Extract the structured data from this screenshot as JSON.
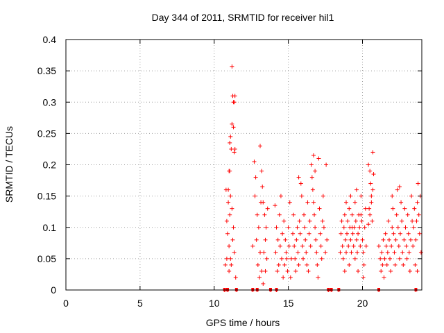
{
  "chart_data": {
    "type": "scatter",
    "title": "Day 344 of 2011, SRMTID for receiver hil1",
    "xlabel": "GPS time / hours",
    "ylabel": "SRMTID / TECUs",
    "xlim": [
      0,
      24
    ],
    "ylim": [
      0,
      0.4
    ],
    "x_ticks": [
      "0",
      "5",
      "10",
      "15",
      "20"
    ],
    "y_ticks": [
      "0",
      "0.05",
      "0.1",
      "0.15",
      "0.2",
      "0.25",
      "0.3",
      "0.35",
      "0.4"
    ],
    "x_tick_values": [
      0,
      5,
      10,
      15,
      20
    ],
    "y_tick_values": [
      0,
      0.05,
      0.1,
      0.15,
      0.2,
      0.25,
      0.3,
      0.35,
      0.4
    ],
    "marker": "+",
    "color": "#ff0000",
    "series": [
      {
        "name": "hil1",
        "points": [
          [
            10.75,
            0.04
          ],
          [
            10.8,
            0.16
          ],
          [
            10.85,
            0.11
          ],
          [
            10.9,
            0.09
          ],
          [
            10.95,
            0.14
          ],
          [
            11.0,
            0.07
          ],
          [
            11.05,
            0.12
          ],
          [
            11.1,
            0.05
          ],
          [
            10.7,
            0.0
          ],
          [
            10.9,
            0.0
          ],
          [
            11.5,
            0.0
          ],
          [
            12.6,
            0.0
          ],
          [
            12.9,
            0.0
          ],
          [
            13.8,
            0.0
          ],
          [
            14.2,
            0.0
          ],
          [
            17.7,
            0.0
          ],
          [
            17.9,
            0.0
          ],
          [
            18.4,
            0.0
          ],
          [
            21.1,
            0.0
          ],
          [
            23.6,
            0.0
          ],
          [
            11.2,
            0.357
          ],
          [
            11.25,
            0.31
          ],
          [
            11.3,
            0.3
          ],
          [
            11.4,
            0.31
          ],
          [
            11.35,
            0.3
          ],
          [
            11.2,
            0.265
          ],
          [
            11.3,
            0.26
          ],
          [
            11.4,
            0.225
          ],
          [
            11.35,
            0.22
          ],
          [
            11.1,
            0.245
          ],
          [
            11.05,
            0.235
          ],
          [
            11.15,
            0.225
          ],
          [
            11.0,
            0.19
          ],
          [
            10.95,
            0.16
          ],
          [
            11.1,
            0.15
          ],
          [
            11.2,
            0.13
          ],
          [
            11.3,
            0.1
          ],
          [
            11.25,
            0.08
          ],
          [
            11.35,
            0.06
          ],
          [
            11.15,
            0.04
          ],
          [
            11.45,
            0.02
          ],
          [
            11.05,
            0.19
          ],
          [
            10.85,
            0.05
          ],
          [
            11.0,
            0.03
          ],
          [
            12.7,
            0.205
          ],
          [
            12.8,
            0.18
          ],
          [
            12.75,
            0.15
          ],
          [
            12.9,
            0.12
          ],
          [
            13.0,
            0.1
          ],
          [
            12.85,
            0.08
          ],
          [
            13.1,
            0.06
          ],
          [
            12.95,
            0.04
          ],
          [
            13.2,
            0.03
          ],
          [
            13.05,
            0.02
          ],
          [
            13.15,
            0.14
          ],
          [
            12.6,
            0.07
          ],
          [
            13.1,
            0.23
          ],
          [
            13.2,
            0.19
          ],
          [
            13.25,
            0.165
          ],
          [
            13.3,
            0.14
          ],
          [
            13.4,
            0.12
          ],
          [
            13.5,
            0.1
          ],
          [
            13.45,
            0.08
          ],
          [
            13.35,
            0.06
          ],
          [
            13.55,
            0.05
          ],
          [
            13.6,
            0.13
          ],
          [
            13.3,
            0.01
          ],
          [
            13.45,
            0.03
          ],
          [
            14.1,
            0.135
          ],
          [
            14.2,
            0.1
          ],
          [
            14.3,
            0.08
          ],
          [
            14.15,
            0.06
          ],
          [
            14.35,
            0.04
          ],
          [
            14.25,
            0.03
          ],
          [
            14.4,
            0.12
          ],
          [
            14.5,
            0.15
          ],
          [
            14.45,
            0.07
          ],
          [
            14.55,
            0.05
          ],
          [
            14.6,
            0.09
          ],
          [
            14.65,
            0.02
          ],
          [
            14.7,
            0.11
          ],
          [
            14.8,
            0.08
          ],
          [
            14.9,
            0.05
          ],
          [
            14.75,
            0.04
          ],
          [
            14.85,
            0.06
          ],
          [
            14.95,
            0.03
          ],
          [
            15.0,
            0.1
          ],
          [
            15.1,
            0.14
          ],
          [
            15.05,
            0.07
          ],
          [
            15.2,
            0.05
          ],
          [
            15.15,
            0.02
          ],
          [
            15.3,
            0.09
          ],
          [
            15.35,
            0.12
          ],
          [
            15.4,
            0.07
          ],
          [
            15.45,
            0.05
          ],
          [
            15.5,
            0.03
          ],
          [
            15.55,
            0.08
          ],
          [
            15.6,
            0.1
          ],
          [
            15.65,
            0.06
          ],
          [
            15.7,
            0.04
          ],
          [
            15.75,
            0.11
          ],
          [
            15.8,
            0.09
          ],
          [
            15.85,
            0.17
          ],
          [
            15.9,
            0.15
          ],
          [
            15.95,
            0.07
          ],
          [
            16.0,
            0.05
          ],
          [
            16.05,
            0.12
          ],
          [
            16.1,
            0.1
          ],
          [
            16.15,
            0.08
          ],
          [
            16.2,
            0.06
          ],
          [
            16.25,
            0.04
          ],
          [
            16.3,
            0.14
          ],
          [
            16.35,
            0.03
          ],
          [
            16.4,
            0.09
          ],
          [
            16.45,
            0.11
          ],
          [
            16.5,
            0.07
          ],
          [
            16.55,
            0.2
          ],
          [
            16.6,
            0.18
          ],
          [
            16.65,
            0.16
          ],
          [
            16.7,
            0.14
          ],
          [
            16.75,
            0.12
          ],
          [
            16.8,
            0.1
          ],
          [
            16.85,
            0.08
          ],
          [
            16.9,
            0.06
          ],
          [
            16.95,
            0.04
          ],
          [
            17.0,
            0.02
          ],
          [
            17.05,
            0.21
          ],
          [
            17.1,
            0.13
          ],
          [
            17.15,
            0.09
          ],
          [
            17.2,
            0.07
          ],
          [
            17.25,
            0.05
          ],
          [
            17.3,
            0.11
          ],
          [
            17.35,
            0.15
          ],
          [
            17.4,
            0.1
          ],
          [
            17.5,
            0.06
          ],
          [
            17.55,
            0.2
          ],
          [
            17.6,
            0.08
          ],
          [
            16.7,
            0.215
          ],
          [
            16.8,
            0.19
          ],
          [
            15.7,
            0.18
          ],
          [
            18.5,
            0.06
          ],
          [
            18.55,
            0.09
          ],
          [
            18.6,
            0.11
          ],
          [
            18.65,
            0.07
          ],
          [
            18.7,
            0.05
          ],
          [
            18.75,
            0.1
          ],
          [
            18.8,
            0.12
          ],
          [
            18.85,
            0.08
          ],
          [
            18.9,
            0.06
          ],
          [
            18.95,
            0.09
          ],
          [
            19.0,
            0.11
          ],
          [
            19.05,
            0.07
          ],
          [
            19.1,
            0.13
          ],
          [
            19.15,
            0.1
          ],
          [
            19.2,
            0.08
          ],
          [
            19.25,
            0.06
          ],
          [
            19.3,
            0.12
          ],
          [
            19.35,
            0.09
          ],
          [
            19.4,
            0.07
          ],
          [
            19.45,
            0.1
          ],
          [
            19.5,
            0.14
          ],
          [
            19.55,
            0.11
          ],
          [
            19.6,
            0.08
          ],
          [
            19.65,
            0.06
          ],
          [
            19.7,
            0.09
          ],
          [
            19.75,
            0.12
          ],
          [
            19.8,
            0.1
          ],
          [
            19.85,
            0.07
          ],
          [
            19.9,
            0.15
          ],
          [
            19.95,
            0.11
          ],
          [
            20.0,
            0.08
          ],
          [
            20.05,
            0.06
          ],
          [
            20.1,
            0.04
          ],
          [
            20.15,
            0.1
          ],
          [
            20.2,
            0.13
          ],
          [
            20.25,
            0.07
          ],
          [
            18.9,
            0.14
          ],
          [
            19.2,
            0.15
          ],
          [
            19.6,
            0.16
          ],
          [
            19.1,
            0.04
          ],
          [
            19.7,
            0.03
          ],
          [
            19.5,
            0.05
          ],
          [
            20.05,
            0.02
          ],
          [
            18.8,
            0.03
          ],
          [
            19.9,
            0.12
          ],
          [
            19.3,
            0.1
          ],
          [
            20.4,
            0.2
          ],
          [
            20.5,
            0.19
          ],
          [
            20.55,
            0.17
          ],
          [
            20.6,
            0.15
          ],
          [
            20.45,
            0.13
          ],
          [
            20.65,
            0.11
          ],
          [
            20.7,
            0.22
          ],
          [
            20.75,
            0.185
          ],
          [
            20.5,
            0.12
          ],
          [
            20.6,
            0.14
          ],
          [
            20.4,
            0.105
          ],
          [
            20.7,
            0.16
          ],
          [
            21.1,
            0.07
          ],
          [
            21.2,
            0.05
          ],
          [
            21.25,
            0.03
          ],
          [
            21.3,
            0.06
          ],
          [
            21.35,
            0.04
          ],
          [
            21.4,
            0.08
          ],
          [
            21.45,
            0.02
          ],
          [
            21.5,
            0.05
          ],
          [
            21.55,
            0.09
          ],
          [
            21.6,
            0.07
          ],
          [
            21.65,
            0.04
          ],
          [
            21.7,
            0.06
          ],
          [
            21.75,
            0.11
          ],
          [
            21.8,
            0.08
          ],
          [
            21.85,
            0.05
          ],
          [
            21.9,
            0.03
          ],
          [
            21.95,
            0.07
          ],
          [
            22.0,
            0.1
          ],
          [
            22.05,
            0.13
          ],
          [
            22.1,
            0.09
          ],
          [
            22.15,
            0.06
          ],
          [
            22.2,
            0.04
          ],
          [
            22.25,
            0.08
          ],
          [
            22.3,
            0.12
          ],
          [
            22.35,
            0.16
          ],
          [
            22.4,
            0.1
          ],
          [
            22.45,
            0.07
          ],
          [
            22.5,
            0.05
          ],
          [
            22.55,
            0.09
          ],
          [
            22.6,
            0.14
          ],
          [
            22.65,
            0.11
          ],
          [
            22.7,
            0.06
          ],
          [
            22.75,
            0.04
          ],
          [
            22.8,
            0.08
          ],
          [
            22.85,
            0.13
          ],
          [
            22.9,
            0.1
          ],
          [
            22.95,
            0.07
          ],
          [
            23.0,
            0.05
          ],
          [
            23.05,
            0.12
          ],
          [
            23.1,
            0.09
          ],
          [
            23.15,
            0.06
          ],
          [
            23.2,
            0.03
          ],
          [
            23.25,
            0.08
          ],
          [
            23.3,
            0.15
          ],
          [
            23.35,
            0.11
          ],
          [
            23.4,
            0.07
          ],
          [
            23.45,
            0.1
          ],
          [
            23.5,
            0.13
          ],
          [
            23.6,
            0.08
          ],
          [
            23.65,
            0.11
          ],
          [
            23.7,
            0.14
          ],
          [
            23.75,
            0.17
          ],
          [
            23.8,
            0.12
          ],
          [
            23.85,
            0.09
          ],
          [
            23.9,
            0.15
          ],
          [
            23.95,
            0.06
          ],
          [
            23.55,
            0.04
          ],
          [
            23.7,
            0.03
          ],
          [
            22.5,
            0.165
          ],
          [
            22.0,
            0.15
          ]
        ]
      }
    ],
    "floor_markers": [
      10.7,
      10.9,
      11.5,
      12.6,
      12.9,
      13.8,
      14.2,
      17.7,
      17.9,
      18.4,
      21.1,
      23.6
    ]
  }
}
